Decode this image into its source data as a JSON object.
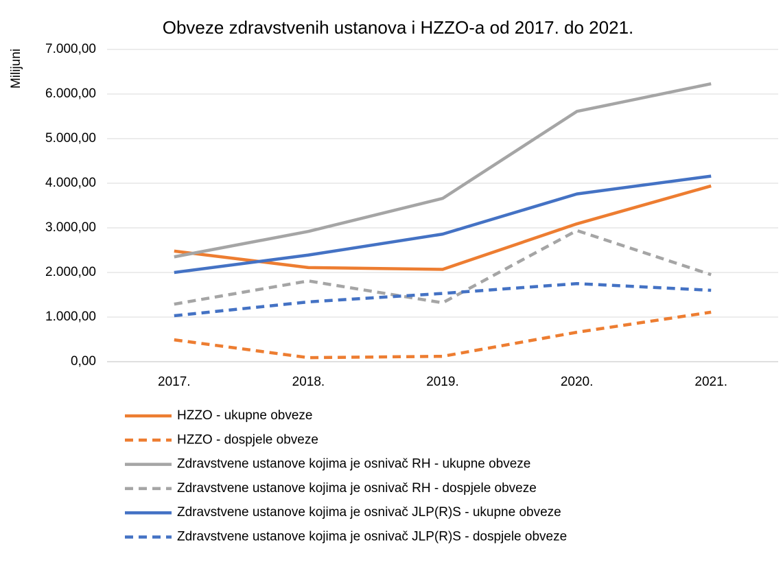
{
  "chart_data": {
    "type": "line",
    "title": "Obveze zdravstvenih ustanova i HZZO-a od 2017. do 2021.",
    "y_label": "Milijuni",
    "categories": [
      "2017.",
      "2018.",
      "2019.",
      "2020.",
      "2021."
    ],
    "series": [
      {
        "name": "HZZO - ukupne obveze",
        "color": "#ed7d31",
        "dashed": false,
        "values": [
          2480,
          2110,
          2070,
          3090,
          3940
        ]
      },
      {
        "name": "HZZO - dospjele obveze",
        "color": "#ed7d31",
        "dashed": true,
        "values": [
          490,
          90,
          120,
          660,
          1110
        ]
      },
      {
        "name": "Zdravstvene ustanove kojima je osnivač RH - ukupne obveze",
        "color": "#a5a5a5",
        "dashed": false,
        "values": [
          2350,
          2920,
          3660,
          5610,
          6230
        ]
      },
      {
        "name": "Zdravstvene ustanove kojima je osnivač RH - dospjele obveze",
        "color": "#a5a5a5",
        "dashed": true,
        "values": [
          1290,
          1810,
          1320,
          2940,
          1950
        ]
      },
      {
        "name": "Zdravstvene ustanove kojima je osnivač JLP(R)S - ukupne obveze",
        "color": "#4472c4",
        "dashed": false,
        "values": [
          2000,
          2390,
          2860,
          3760,
          4160
        ]
      },
      {
        "name": "Zdravstvene ustanove kojima je osnivač JLP(R)S - dospjele obveze",
        "color": "#4472c4",
        "dashed": true,
        "values": [
          1030,
          1340,
          1530,
          1750,
          1600
        ]
      }
    ],
    "ylim": [
      0,
      7000
    ],
    "yticks": [
      {
        "value": 0,
        "label": "0,00"
      },
      {
        "value": 1000,
        "label": "1.000,00"
      },
      {
        "value": 2000,
        "label": "2.000,00"
      },
      {
        "value": 3000,
        "label": "3.000,00"
      },
      {
        "value": 4000,
        "label": "4.000,00"
      },
      {
        "value": 5000,
        "label": "5.000,00"
      },
      {
        "value": 6000,
        "label": "6.000,00"
      },
      {
        "value": 7000,
        "label": "7.000,00"
      }
    ],
    "grid": true,
    "legend": "bottom"
  }
}
